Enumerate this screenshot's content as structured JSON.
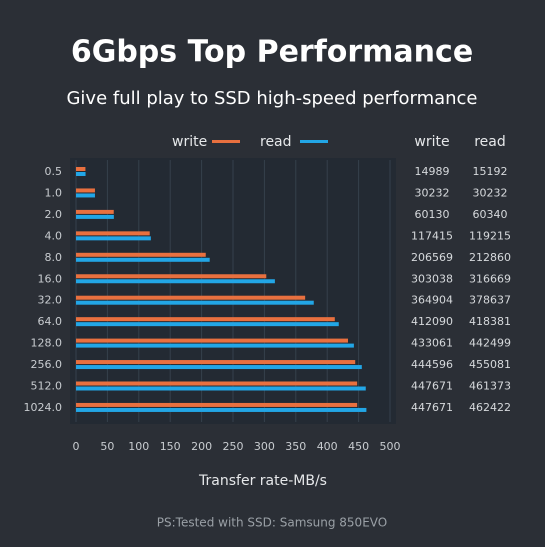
{
  "chart_data": {
    "type": "bar",
    "orientation": "horizontal",
    "title": "6Gbps Top Performance",
    "subtitle": "Give full play to SSD high-speed performance",
    "xlabel": "Transfer rate-MB/s",
    "note": "PS:Tested with SSD: Samsung 850EVO",
    "categories": [
      "0.5",
      "1.0",
      "2.0",
      "4.0",
      "8.0",
      "16.0",
      "32.0",
      "64.0",
      "128.0",
      "256.0",
      "512.0",
      "1024.0"
    ],
    "series": [
      {
        "name": "write",
        "color": "#e8703f",
        "values": [
          15.0,
          30.2,
          60.1,
          117.4,
          206.6,
          303.0,
          364.9,
          412.1,
          433.1,
          444.6,
          447.7,
          447.7
        ]
      },
      {
        "name": "read",
        "color": "#22a6e6",
        "values": [
          15.2,
          30.2,
          60.3,
          119.2,
          212.9,
          316.7,
          378.6,
          418.4,
          442.5,
          455.1,
          461.4,
          462.4
        ]
      }
    ],
    "xlim": [
      0,
      500
    ],
    "xticks": [
      0,
      50,
      100,
      150,
      200,
      250,
      300,
      350,
      400,
      450,
      500
    ],
    "grid": true,
    "legend": "top"
  },
  "table": {
    "columns": [
      "write",
      "read"
    ],
    "rows": [
      [
        14989,
        15192
      ],
      [
        30232,
        30232
      ],
      [
        60130,
        60340
      ],
      [
        117415,
        119215
      ],
      [
        206569,
        212860
      ],
      [
        303038,
        316669
      ],
      [
        364904,
        378637
      ],
      [
        412090,
        418381
      ],
      [
        433061,
        442499
      ],
      [
        444596,
        455081
      ],
      [
        447671,
        461373
      ],
      [
        447671,
        462422
      ]
    ]
  }
}
